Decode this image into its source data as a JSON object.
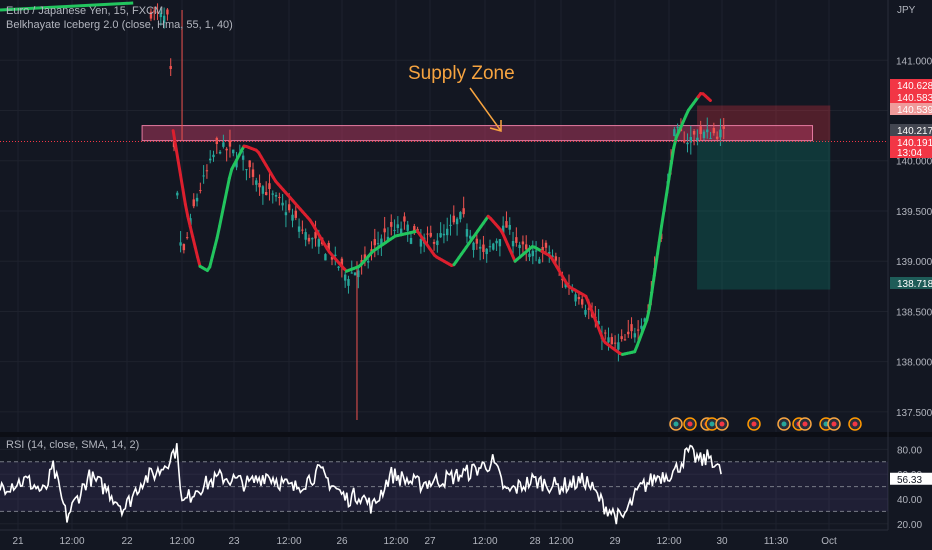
{
  "legend": {
    "symbol": "Euro / Japanese Yen, 15, FXCM",
    "indicator": "Belkhayate Iceberg 2.0 (close, Hma, 55, 1, 40)"
  },
  "price_axis_unit": "JPY",
  "annotation": "Supply Zone",
  "rsi_legend": "RSI (14, close, SMA, 14, 2)",
  "colors": {
    "background": "#131722",
    "up_candle": "#26a69a",
    "down_candle": "#ef5350",
    "hma_up": "#22c55e",
    "hma_down": "#dc1f2e",
    "supply_zone": "#a9365b",
    "annotation": "#f7a440",
    "rsi": "#ffffff",
    "rsi_band": "#7e57c2"
  },
  "chart_data": [
    {
      "type": "candlestick",
      "title": "Euro / Japanese Yen, 15, FXCM",
      "ylim": [
        137.3,
        141.6
      ],
      "yticks": [
        137.5,
        138.0,
        138.5,
        139.0,
        139.5,
        140.0,
        140.5,
        141.0
      ],
      "ytick_labels": [
        "137.500",
        "138.000",
        "138.500",
        "139.000",
        "139.500",
        "140.000",
        "140.500",
        "141.000"
      ],
      "xticks": [
        "21",
        "12:00",
        "22",
        "12:00",
        "23",
        "12:00",
        "26",
        "12:00",
        "27",
        "12:00",
        "28",
        "12:00",
        "29",
        "12:00",
        "30",
        "11:30",
        "Oct"
      ],
      "close_path": [
        [
          0,
          141.5
        ],
        [
          0.15,
          141.55
        ],
        [
          0.19,
          141.4
        ],
        [
          0.195,
          140.2
        ],
        [
          0.205,
          139.0
        ],
        [
          0.22,
          139.6
        ],
        [
          0.245,
          140.15
        ],
        [
          0.27,
          140.05
        ],
        [
          0.3,
          139.7
        ],
        [
          0.325,
          139.5
        ],
        [
          0.345,
          139.25
        ],
        [
          0.37,
          139.1
        ],
        [
          0.39,
          138.85
        ],
        [
          0.41,
          138.95
        ],
        [
          0.43,
          139.25
        ],
        [
          0.455,
          139.35
        ],
        [
          0.475,
          139.2
        ],
        [
          0.5,
          139.25
        ],
        [
          0.52,
          139.45
        ],
        [
          0.545,
          139.05
        ],
        [
          0.57,
          139.35
        ],
        [
          0.595,
          139.05
        ],
        [
          0.62,
          139.1
        ],
        [
          0.635,
          138.8
        ],
        [
          0.65,
          138.7
        ],
        [
          0.67,
          138.4
        ],
        [
          0.69,
          138.15
        ],
        [
          0.705,
          138.2
        ],
        [
          0.73,
          138.5
        ],
        [
          0.745,
          139.3
        ],
        [
          0.76,
          140.3
        ],
        [
          0.775,
          140.2
        ],
        [
          0.785,
          140.27
        ]
      ],
      "hma_path": [
        [
          0.195,
          140.3
        ],
        [
          0.21,
          139.5
        ],
        [
          0.225,
          138.95
        ],
        [
          0.235,
          138.9
        ],
        [
          0.245,
          139.25
        ],
        [
          0.26,
          139.9
        ],
        [
          0.275,
          140.15
        ],
        [
          0.29,
          140.1
        ],
        [
          0.31,
          139.8
        ],
        [
          0.33,
          139.6
        ],
        [
          0.35,
          139.4
        ],
        [
          0.37,
          139.1
        ],
        [
          0.39,
          138.9
        ],
        [
          0.405,
          138.95
        ],
        [
          0.42,
          139.1
        ],
        [
          0.445,
          139.25
        ],
        [
          0.47,
          139.3
        ],
        [
          0.49,
          139.05
        ],
        [
          0.51,
          138.95
        ],
        [
          0.53,
          139.2
        ],
        [
          0.55,
          139.45
        ],
        [
          0.565,
          139.3
        ],
        [
          0.58,
          139.0
        ],
        [
          0.6,
          139.15
        ],
        [
          0.62,
          139.05
        ],
        [
          0.64,
          138.75
        ],
        [
          0.66,
          138.65
        ],
        [
          0.68,
          138.2
        ],
        [
          0.7,
          138.07
        ],
        [
          0.715,
          138.1
        ],
        [
          0.73,
          138.45
        ],
        [
          0.745,
          139.35
        ],
        [
          0.76,
          140.2
        ],
        [
          0.775,
          140.5
        ],
        [
          0.79,
          140.68
        ],
        [
          0.8,
          140.6
        ]
      ],
      "hma_down_legs": [
        [
          0.195,
          0.225
        ],
        [
          0.275,
          0.39
        ],
        [
          0.47,
          0.51
        ],
        [
          0.55,
          0.58
        ],
        [
          0.61,
          0.7
        ],
        [
          0.785,
          0.8
        ]
      ],
      "supply_zone": {
        "x": [
          0.16,
          0.915
        ],
        "y": [
          140.2,
          140.35
        ]
      },
      "position": {
        "x": [
          0.785,
          0.935
        ],
        "entry": 140.2,
        "stop": 140.55,
        "target": 138.718
      },
      "price_labels": [
        {
          "value": 140.628,
          "text": "140.628",
          "color": "#f23645"
        },
        {
          "value": 140.583,
          "text": "140.583",
          "color": "#f23645"
        },
        {
          "value": 140.539,
          "text": "140.539",
          "color": "#ef9a9a"
        },
        {
          "value": 140.217,
          "text": "140.217",
          "color": "#434651"
        },
        {
          "value": 140.191,
          "text": "140.191",
          "sub": "13:04",
          "color": "#f23645"
        },
        {
          "value": 138.718,
          "text": "138.718",
          "color": "#1e5c58"
        }
      ],
      "dotted_line": 140.191
    },
    {
      "type": "line",
      "title": "RSI (14, close, SMA, 14, 2)",
      "ylim": [
        15,
        90
      ],
      "yticks": [
        20.0,
        40.0,
        60.0,
        80.0
      ],
      "ytick_labels": [
        "20.00",
        "40.00",
        "60.00",
        "80.00"
      ],
      "band": [
        30,
        70
      ],
      "midline": 50,
      "last_value": "56.33",
      "path": [
        [
          0,
          50
        ],
        [
          0.03,
          55
        ],
        [
          0.05,
          45
        ],
        [
          0.06,
          65
        ],
        [
          0.075,
          25
        ],
        [
          0.1,
          58
        ],
        [
          0.12,
          48
        ],
        [
          0.14,
          32
        ],
        [
          0.16,
          55
        ],
        [
          0.18,
          63
        ],
        [
          0.19,
          72
        ],
        [
          0.2,
          82
        ],
        [
          0.205,
          35
        ],
        [
          0.22,
          48
        ],
        [
          0.25,
          58
        ],
        [
          0.28,
          52
        ],
        [
          0.3,
          60
        ],
        [
          0.33,
          48
        ],
        [
          0.36,
          62
        ],
        [
          0.39,
          40
        ],
        [
          0.405,
          44
        ],
        [
          0.42,
          33
        ],
        [
          0.44,
          60
        ],
        [
          0.47,
          52
        ],
        [
          0.5,
          56
        ],
        [
          0.53,
          62
        ],
        [
          0.555,
          70
        ],
        [
          0.57,
          45
        ],
        [
          0.6,
          55
        ],
        [
          0.63,
          50
        ],
        [
          0.66,
          55
        ],
        [
          0.68,
          35
        ],
        [
          0.7,
          23
        ],
        [
          0.72,
          48
        ],
        [
          0.74,
          58
        ],
        [
          0.76,
          62
        ],
        [
          0.775,
          78
        ],
        [
          0.79,
          70
        ],
        [
          0.8,
          75
        ],
        [
          0.812,
          60
        ]
      ]
    }
  ]
}
